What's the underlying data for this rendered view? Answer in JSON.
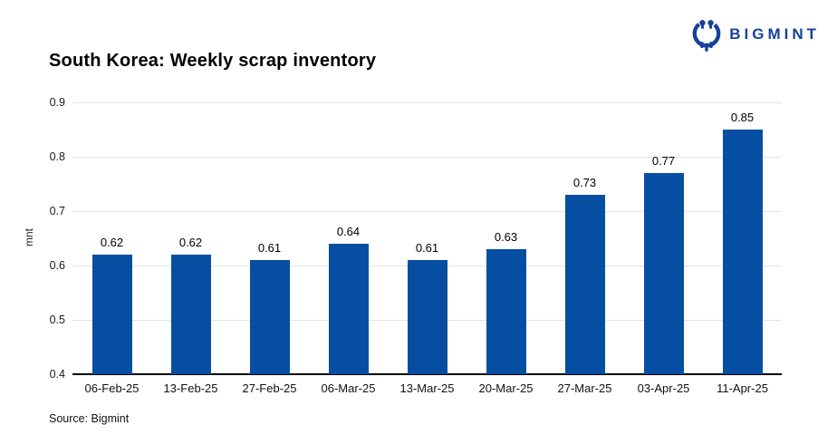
{
  "header": {
    "title": "South Korea: Weekly scrap inventory",
    "logo_text": "BIGMINT"
  },
  "footer": {
    "source": "Source: Bigmint"
  },
  "colors": {
    "brand_blue": "#16419c",
    "bar_blue": "#054ea2",
    "gridline": "#e3e3e3",
    "baseline": "#000000"
  },
  "chart_data": {
    "type": "bar",
    "title": "South Korea: Weekly scrap inventory",
    "xlabel": "",
    "ylabel": "mnt",
    "ylim": [
      0.4,
      0.9
    ],
    "ytick_labels": [
      "0.9",
      "0.8",
      "0.7",
      "0.6",
      "0.5",
      "0.4"
    ],
    "grid": true,
    "legend_position": "none",
    "categories": [
      "06-Feb-25",
      "13-Feb-25",
      "27-Feb-25",
      "06-Mar-25",
      "13-Mar-25",
      "20-Mar-25",
      "27-Mar-25",
      "03-Apr-25",
      "11-Apr-25"
    ],
    "values": [
      0.62,
      0.62,
      0.61,
      0.64,
      0.61,
      0.63,
      0.73,
      0.77,
      0.85
    ],
    "value_labels": [
      "0.62",
      "0.62",
      "0.61",
      "0.64",
      "0.61",
      "0.63",
      "0.73",
      "0.77",
      "0.85"
    ]
  }
}
